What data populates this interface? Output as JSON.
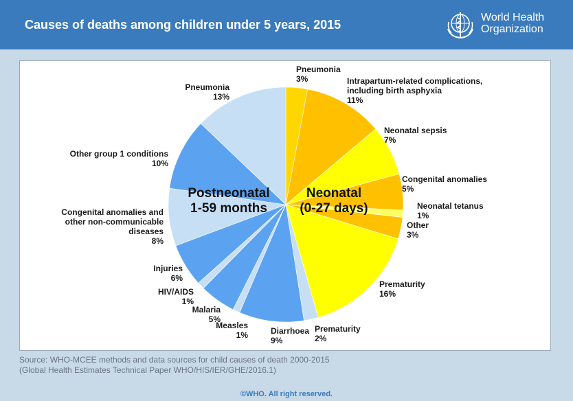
{
  "header": {
    "title": "Causes of deaths among children under 5 years, 2015"
  },
  "logo": {
    "line1": "World Health",
    "line2": "Organization",
    "icon": "who-emblem-icon"
  },
  "source": {
    "line1": "Source: WHO-MCEE methods and data sources for child causes of death 2000-2015",
    "line2": "(Global Health Estimates Technical Paper WHO/HIS/IER/GHE/2016.1)"
  },
  "copyright": "©WHO. All right reserved.",
  "chart_data": {
    "type": "pie",
    "title": "Causes of deaths among children under 5 years, 2015",
    "unit": "%",
    "groups": [
      {
        "label_lines": [
          "Neonatal",
          "(0-27 days)"
        ]
      },
      {
        "label_lines": [
          "Postneonatal",
          "1-59 months"
        ]
      }
    ],
    "slices": [
      {
        "label_lines": [
          "Pneumonia"
        ],
        "value_label": "3%",
        "value": 3,
        "group": 0,
        "color": "#ffd700"
      },
      {
        "label_lines": [
          "Intrapartum-related complications,",
          "including birth asphyxia"
        ],
        "value_label": "11%",
        "value": 11,
        "group": 0,
        "color": "#ffc000"
      },
      {
        "label_lines": [
          "Neonatal sepsis"
        ],
        "value_label": "7%",
        "value": 7,
        "group": 0,
        "color": "#ffff00"
      },
      {
        "label_lines": [
          "Congenital anomalies"
        ],
        "value_label": "5%",
        "value": 5,
        "group": 0,
        "color": "#ffc000"
      },
      {
        "label_lines": [
          "Neonatal tetanus"
        ],
        "value_label": "1%",
        "value": 1,
        "group": 0,
        "color": "#ffff66"
      },
      {
        "label_lines": [
          "Other"
        ],
        "value_label": "3%",
        "value": 3,
        "group": 0,
        "color": "#ffc000"
      },
      {
        "label_lines": [
          "Prematurity"
        ],
        "value_label": "16%",
        "value": 16,
        "group": 0,
        "color": "#ffff00"
      },
      {
        "label_lines": [
          "Prematurity"
        ],
        "value_label": "2%",
        "value": 2,
        "group": 1,
        "color": "#c6dff5"
      },
      {
        "label_lines": [
          "Diarrhoea"
        ],
        "value_label": "9%",
        "value": 9,
        "group": 1,
        "color": "#5ba3f0"
      },
      {
        "label_lines": [
          "Measles"
        ],
        "value_label": "1%",
        "value": 1,
        "group": 1,
        "color": "#c6dff5"
      },
      {
        "label_lines": [
          "Malaria"
        ],
        "value_label": "5%",
        "value": 5,
        "group": 1,
        "color": "#5ba3f0"
      },
      {
        "label_lines": [
          "HIV/AIDS"
        ],
        "value_label": "1%",
        "value": 1,
        "group": 1,
        "color": "#c6dff5"
      },
      {
        "label_lines": [
          "Injuries"
        ],
        "value_label": "6%",
        "value": 6,
        "group": 1,
        "color": "#5ba3f0"
      },
      {
        "label_lines": [
          "Congenital anomalies and",
          "other non-communicable",
          "diseases"
        ],
        "value_label": "8%",
        "value": 8,
        "group": 1,
        "color": "#c6dff5"
      },
      {
        "label_lines": [
          "Other group 1 conditions"
        ],
        "value_label": "10%",
        "value": 10,
        "group": 1,
        "color": "#5ba3f0"
      },
      {
        "label_lines": [
          "Pneumonia"
        ],
        "value_label": "13%",
        "value": 13,
        "group": 1,
        "color": "#c6dff5"
      }
    ]
  }
}
